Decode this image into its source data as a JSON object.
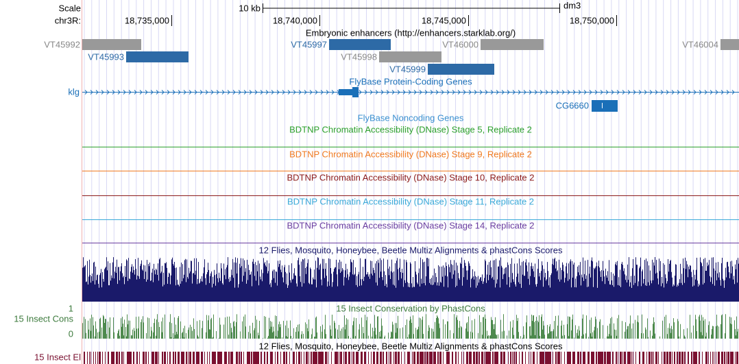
{
  "header": {
    "scale": "Scale",
    "scale_bar": "10 kb",
    "assembly": "dm3",
    "chrom": "chr3R:",
    "positions": [
      "18,735,000",
      "18,740,000",
      "18,745,000",
      "18,750,000"
    ]
  },
  "enhancers": {
    "title": "Embryonic enhancers (http://enhancers.starklab.org/)",
    "features": [
      "VT45992",
      "VT45993",
      "VT45997",
      "VT45998",
      "VT46000",
      "VT45999",
      "VT46004"
    ]
  },
  "coding_genes": {
    "title": "FlyBase Protein-Coding Genes",
    "genes": [
      "klg",
      "CG6660"
    ]
  },
  "noncoding_genes": {
    "title": "FlyBase Noncoding Genes"
  },
  "dnase_tracks": [
    "BDTNP Chromatin Accessibility (DNase) Stage 5, Replicate 2",
    "BDTNP Chromatin Accessibility (DNase) Stage 9, Replicate 2",
    "BDTNP Chromatin Accessibility (DNase) Stage 10, Replicate 2",
    "BDTNP Chromatin Accessibility (DNase) Stage 11, Replicate 2",
    "BDTNP Chromatin Accessibility (DNase) Stage 14, Replicate 2"
  ],
  "multiz": {
    "title": "12 Flies, Mosquito, Honeybee, Beetle Multiz Alignments & phastCons Scores"
  },
  "phastcons": {
    "title": "15 Insect Conservation by PhastCons",
    "label": "15 Insect Cons",
    "max": "1",
    "min": "0"
  },
  "elements": {
    "title": "12 Flies, Mosquito, Honeybee, Beetle Multiz Alignments & phastCons Scores",
    "label": "15 Insect El"
  }
}
